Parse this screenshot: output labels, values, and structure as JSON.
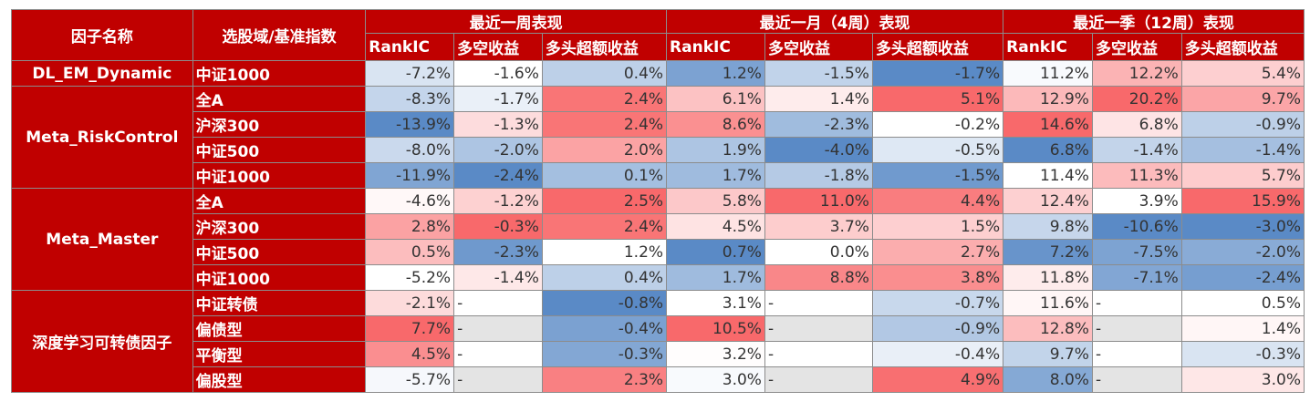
{
  "table": {
    "header": {
      "factor_label": "因子名称",
      "universe_label": "选股域/基准指数",
      "periods": [
        "最近一周表现",
        "最近一月（4周）表现",
        "最近一季（12周）表现"
      ],
      "metrics": [
        "RankIC",
        "多空收益",
        "多头超额收益"
      ]
    },
    "groups": [
      {
        "factor": "DL_EM_Dynamic",
        "rows": [
          {
            "universe": "中证1000",
            "cells": [
              "-7.2%",
              "-1.6%",
              "0.4%",
              "1.2%",
              "-1.5%",
              "-1.7%",
              "11.2%",
              "12.2%",
              "5.4%"
            ]
          }
        ]
      },
      {
        "factor": "Meta_RiskControl",
        "rows": [
          {
            "universe": "全A",
            "cells": [
              "-8.3%",
              "-1.7%",
              "2.4%",
              "6.1%",
              "1.4%",
              "5.1%",
              "12.9%",
              "20.2%",
              "9.7%"
            ]
          },
          {
            "universe": "沪深300",
            "cells": [
              "-13.9%",
              "-1.3%",
              "2.4%",
              "8.6%",
              "-2.3%",
              "-0.2%",
              "14.6%",
              "6.8%",
              "-0.9%"
            ]
          },
          {
            "universe": "中证500",
            "cells": [
              "-8.0%",
              "-2.0%",
              "2.0%",
              "1.9%",
              "-4.0%",
              "-0.5%",
              "6.8%",
              "-1.4%",
              "-1.4%"
            ]
          },
          {
            "universe": "中证1000",
            "cells": [
              "-11.9%",
              "-2.4%",
              "0.1%",
              "1.7%",
              "-1.8%",
              "-1.5%",
              "11.4%",
              "11.3%",
              "5.7%"
            ]
          }
        ]
      },
      {
        "factor": "Meta_Master",
        "rows": [
          {
            "universe": "全A",
            "cells": [
              "-4.6%",
              "-1.2%",
              "2.5%",
              "5.8%",
              "11.0%",
              "4.4%",
              "12.4%",
              "3.9%",
              "15.9%"
            ]
          },
          {
            "universe": "沪深300",
            "cells": [
              "2.8%",
              "-0.3%",
              "2.4%",
              "4.5%",
              "3.7%",
              "1.5%",
              "9.8%",
              "-10.6%",
              "-3.0%"
            ]
          },
          {
            "universe": "中证500",
            "cells": [
              "0.5%",
              "-2.3%",
              "1.2%",
              "0.7%",
              "0.0%",
              "2.7%",
              "7.2%",
              "-7.5%",
              "-2.0%"
            ]
          },
          {
            "universe": "中证1000",
            "cells": [
              "-5.2%",
              "-1.4%",
              "0.4%",
              "1.7%",
              "8.8%",
              "3.8%",
              "11.8%",
              "-7.1%",
              "-2.4%"
            ]
          }
        ]
      },
      {
        "factor": "深度学习可转债因子",
        "rows": [
          {
            "universe": "中证转债",
            "cells": [
              "-2.1%",
              "-",
              "-0.8%",
              "3.1%",
              "-",
              "-0.7%",
              "11.6%",
              "-",
              "0.5%"
            ]
          },
          {
            "universe": "偏债型",
            "cells": [
              "7.7%",
              "-",
              "-0.4%",
              "10.5%",
              "-",
              "-0.9%",
              "12.8%",
              "-",
              "1.4%"
            ]
          },
          {
            "universe": "平衡型",
            "cells": [
              "4.5%",
              "-",
              "-0.3%",
              "3.2%",
              "-",
              "-0.4%",
              "9.7%",
              "-",
              "-0.3%"
            ]
          },
          {
            "universe": "偏股型",
            "cells": [
              "-5.7%",
              "-",
              "2.3%",
              "3.0%",
              "-",
              "4.9%",
              "8.0%",
              "-",
              "3.0%"
            ]
          }
        ]
      }
    ]
  },
  "colors": {
    "header_bg": "#c00000",
    "header_text": "#ffffff",
    "positive_scale": "#f8696b",
    "neutral": "#ffffff",
    "negative_scale": "#5a8ac6",
    "dash_gray": "#e4e4e4",
    "grid": "#8c8c8c"
  }
}
